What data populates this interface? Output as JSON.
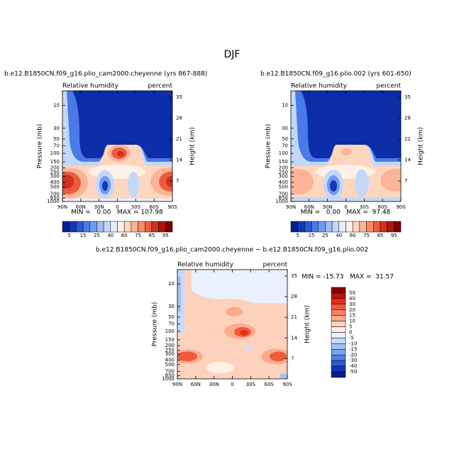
{
  "title": "DJF",
  "chart_data": [
    {
      "type": "contour",
      "title": "b.e12.B1850CN.f09_g16.plio_cam2000.cheyenne (yrs 867-888)",
      "left_label": "Relative humidity",
      "right_label": "percent",
      "ylabel": "Pressure (mb)",
      "y2label": "Height (km)",
      "stats": "MIN =   0.00   MAX = 107.98",
      "xlim": [
        90,
        -90
      ],
      "xticks": [
        {
          "value": 90,
          "label": "90N"
        },
        {
          "value": 60,
          "label": "60N"
        },
        {
          "value": 30,
          "label": "30N"
        },
        0,
        {
          "value": -30,
          "label": "30S"
        },
        {
          "value": -60,
          "label": "60S"
        },
        {
          "value": -90,
          "label": "90S"
        }
      ],
      "ylim": [
        1000,
        5
      ],
      "ylog": true,
      "yticks": [
        10,
        30,
        50,
        70,
        100,
        150,
        200,
        250,
        300,
        400,
        500,
        700,
        850,
        1000
      ],
      "y2ticks": [
        7,
        14,
        21,
        28,
        35
      ],
      "colorbar": {
        "orientation": "horizontal",
        "colors": [
          "#05208c",
          "#1437b8",
          "#2a58d8",
          "#4a7ae8",
          "#7399ef",
          "#9dbcf4",
          "#c2d8f8",
          "#e6efff",
          "#fff1e8",
          "#fdd6c0",
          "#fbb497",
          "#f68a68",
          "#ea5d3e",
          "#d3301f",
          "#b01411",
          "#7f0000"
        ],
        "labels": [
          5,
          15,
          25,
          40,
          60,
          75,
          85,
          95
        ]
      }
    },
    {
      "type": "contour",
      "title": "b.e12.B1850CN.f09_g16.plio.002 (yrs 601-650)",
      "left_label": "Relative humidity",
      "right_label": "percent",
      "ylabel": "Pressure (mb)",
      "y2label": "Height (km)",
      "stats": "MIN =   0.00   MAX =  97.48",
      "xlim": [
        90,
        -90
      ],
      "xticks": [
        {
          "value": 90,
          "label": "90N"
        },
        {
          "value": 60,
          "label": "60N"
        },
        {
          "value": 30,
          "label": "30N"
        },
        0,
        {
          "value": -30,
          "label": "30S"
        },
        {
          "value": -60,
          "label": "60S"
        },
        {
          "value": -90,
          "label": "90S"
        }
      ],
      "ylim": [
        1000,
        5
      ],
      "ylog": true,
      "yticks": [
        10,
        30,
        50,
        70,
        100,
        150,
        200,
        250,
        300,
        400,
        500,
        700,
        850,
        1000
      ],
      "y2ticks": [
        7,
        14,
        21,
        28,
        35
      ],
      "colorbar": {
        "orientation": "horizontal",
        "colors": [
          "#05208c",
          "#1437b8",
          "#2a58d8",
          "#4a7ae8",
          "#7399ef",
          "#9dbcf4",
          "#c2d8f8",
          "#e6efff",
          "#fff1e8",
          "#fdd6c0",
          "#fbb497",
          "#f68a68",
          "#ea5d3e",
          "#d3301f",
          "#b01411",
          "#7f0000"
        ],
        "labels": [
          5,
          15,
          25,
          40,
          60,
          75,
          85,
          95
        ]
      }
    },
    {
      "type": "contour",
      "title": "b.e12.B1850CN.f09_g16.plio_cam2000.cheyenne − b.e12.B1850CN.f09_g16.plio.002",
      "left_label": "Relative humidity",
      "right_label": "percent",
      "ylabel": "Pressure (mb)",
      "y2label": "Height (km)",
      "stats": "MIN = -15.73   MAX =  31.57",
      "xlim": [
        90,
        -90
      ],
      "xticks": [
        {
          "value": 90,
          "label": "90N"
        },
        {
          "value": 60,
          "label": "60N"
        },
        {
          "value": 30,
          "label": "30N"
        },
        0,
        {
          "value": -30,
          "label": "30S"
        },
        {
          "value": -60,
          "label": "60S"
        },
        {
          "value": -90,
          "label": "90S"
        }
      ],
      "ylim": [
        1000,
        5
      ],
      "ylog": true,
      "yticks": [
        10,
        30,
        50,
        70,
        100,
        150,
        200,
        250,
        300,
        400,
        500,
        700,
        850,
        1000
      ],
      "y2ticks": [
        7,
        14,
        21,
        28,
        35
      ],
      "colorbar": {
        "orientation": "vertical",
        "colors": [
          "#8a0000",
          "#c01010",
          "#e0301c",
          "#f05a3c",
          "#f88462",
          "#fbac8e",
          "#fdd2bd",
          "#fff0e6",
          "#eaf1fd",
          "#c8dbf8",
          "#a2c1f4",
          "#7aa2ee",
          "#5080e6",
          "#2a58d8",
          "#1437b8",
          "#05208c"
        ],
        "labels": [
          50,
          40,
          30,
          20,
          15,
          10,
          5,
          0,
          -5,
          -10,
          -15,
          -20,
          -30,
          -40,
          -50
        ]
      }
    }
  ]
}
